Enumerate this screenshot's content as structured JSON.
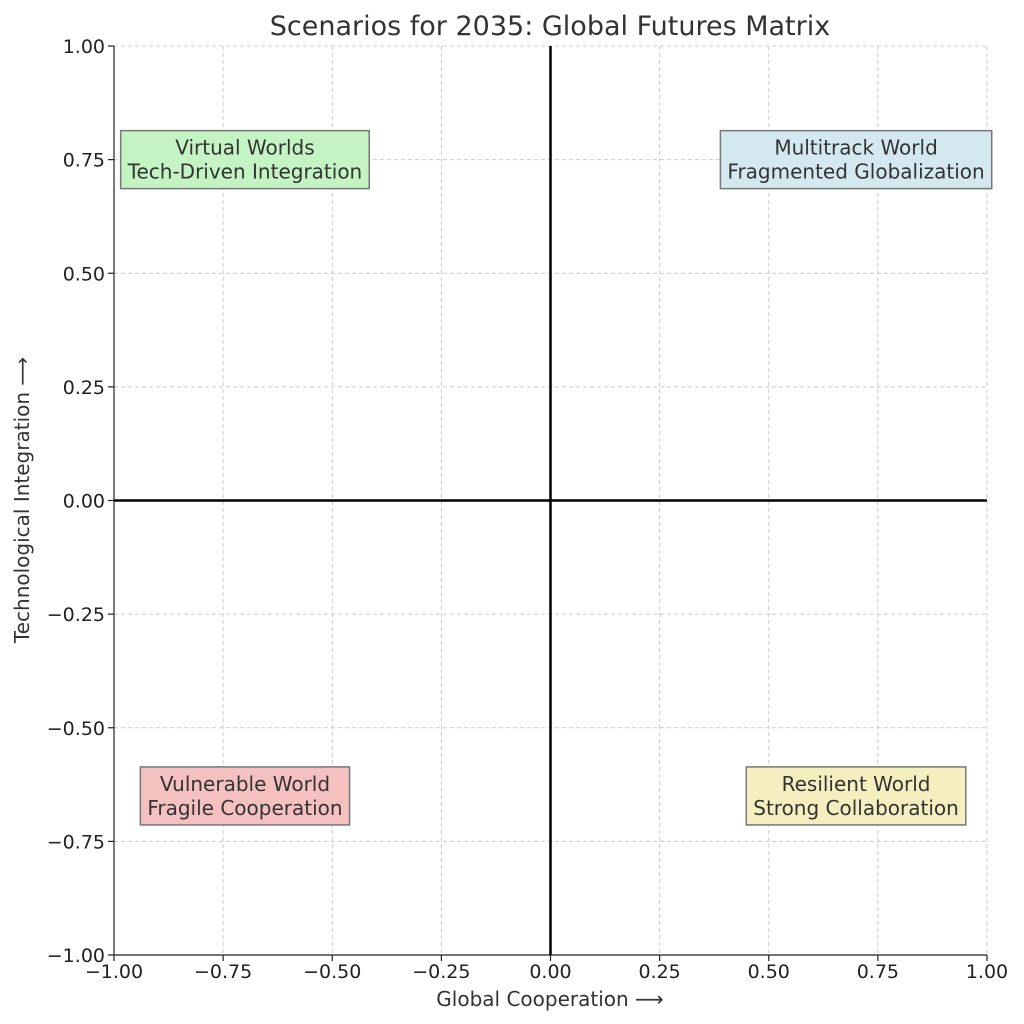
{
  "chart_data": {
    "type": "scatter",
    "title": "Scenarios for 2035: Global Futures Matrix",
    "xlabel": "Global Cooperation  ⟶",
    "ylabel": "Technological Integration  ⟶",
    "xlim": [
      -1.0,
      1.0
    ],
    "ylim": [
      -1.0,
      1.0
    ],
    "xticks": [
      -1.0,
      -0.75,
      -0.5,
      -0.25,
      0.0,
      0.25,
      0.5,
      0.75,
      1.0
    ],
    "yticks": [
      -1.0,
      -0.75,
      -0.5,
      -0.25,
      0.0,
      0.25,
      0.5,
      0.75,
      1.0
    ],
    "xtick_labels": [
      "−1.00",
      "−0.75",
      "−0.50",
      "−0.25",
      "0.00",
      "0.25",
      "0.50",
      "0.75",
      "1.00"
    ],
    "ytick_labels": [
      "−1.00",
      "−0.75",
      "−0.50",
      "−0.25",
      "0.00",
      "0.25",
      "0.50",
      "0.75",
      "1.00"
    ],
    "grid": true,
    "reference_lines": {
      "x": 0,
      "y": 0
    },
    "annotations": [
      {
        "x": -0.7,
        "y": 0.75,
        "lines": [
          "Virtual Worlds",
          "Tech-Driven Integration"
        ],
        "color": "#c4f3c4"
      },
      {
        "x": 0.7,
        "y": 0.75,
        "lines": [
          "Multitrack World",
          "Fragmented Globalization"
        ],
        "color": "#d3e9ef"
      },
      {
        "x": -0.7,
        "y": -0.65,
        "lines": [
          "Vulnerable World",
          "Fragile Cooperation"
        ],
        "color": "#f5c0c0"
      },
      {
        "x": 0.7,
        "y": -0.65,
        "lines": [
          "Resilient World",
          "Strong Collaboration"
        ],
        "color": "#f5efc0"
      }
    ]
  }
}
